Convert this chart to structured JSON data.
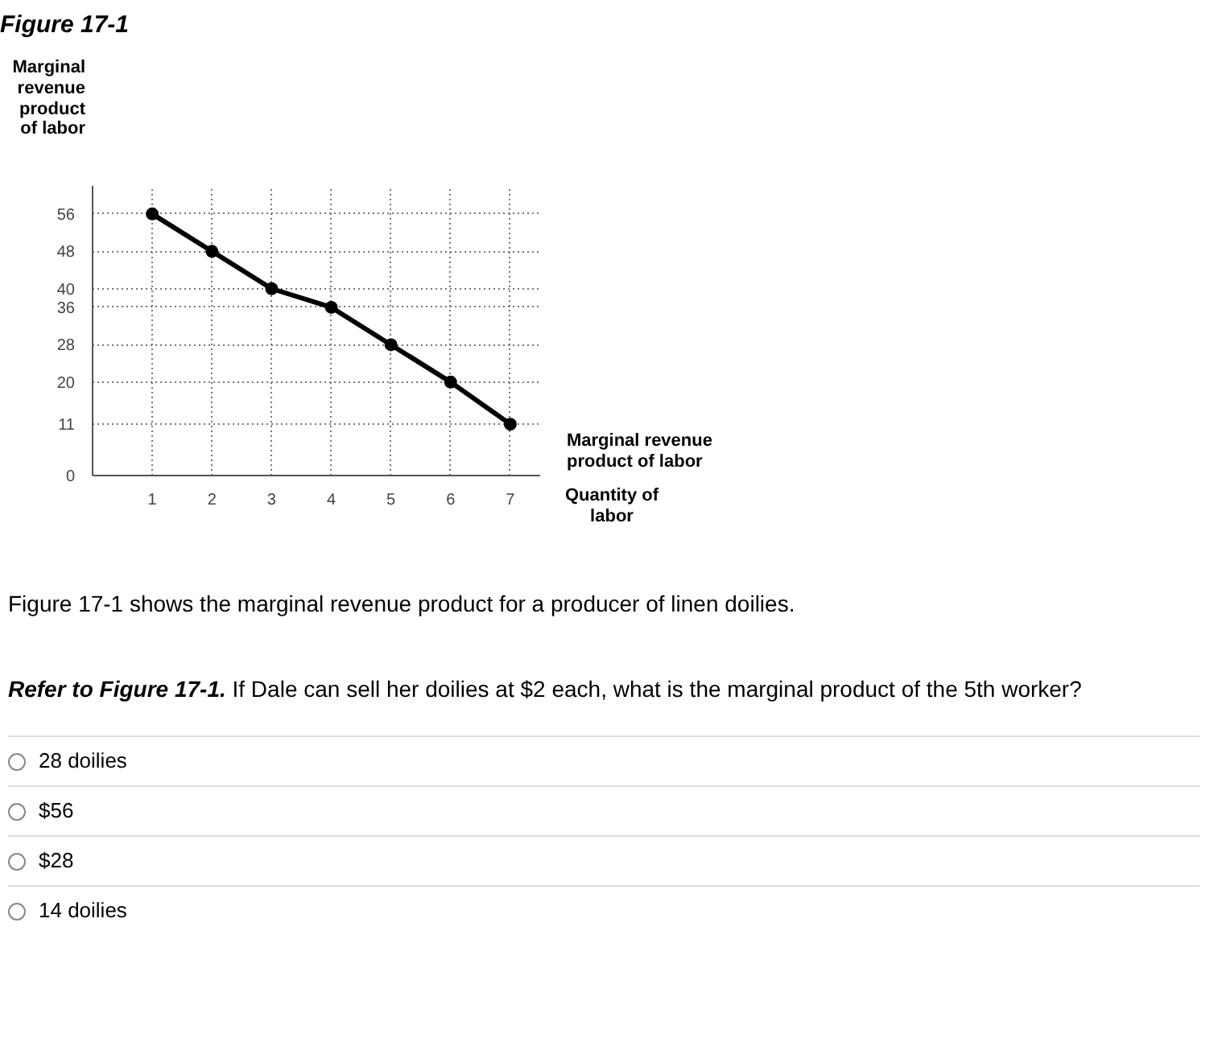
{
  "chart_data": {
    "type": "line",
    "title": "Figure 17-1",
    "xlabel": "Quantity of labor",
    "ylabel": "Marginal revenue product of labor",
    "x": [
      1,
      2,
      3,
      4,
      5,
      6,
      7
    ],
    "series": [
      {
        "name": "Marginal revenue product of labor",
        "color": "#000000",
        "values": [
          56,
          48,
          40,
          36,
          28,
          20,
          11
        ]
      }
    ],
    "xlim": [
      0,
      7.5
    ],
    "ylim": [
      0,
      62
    ],
    "xticks": [
      1,
      2,
      3,
      4,
      5,
      6,
      7
    ],
    "yticks": [
      0,
      11,
      20,
      28,
      36,
      40,
      48,
      56
    ],
    "grid": true,
    "line_style": "solid",
    "marker": "circle",
    "annotations": [
      "Figure 17-1 shows the marginal revenue product for a producer of linen doilies.",
      "Refer to Figure 17-1. If Dale can sell her doilies at $2 each, what is the marginal product of the 5th worker?",
      "28 doilies",
      "$56",
      "$28",
      "14 doilies"
    ]
  }
}
